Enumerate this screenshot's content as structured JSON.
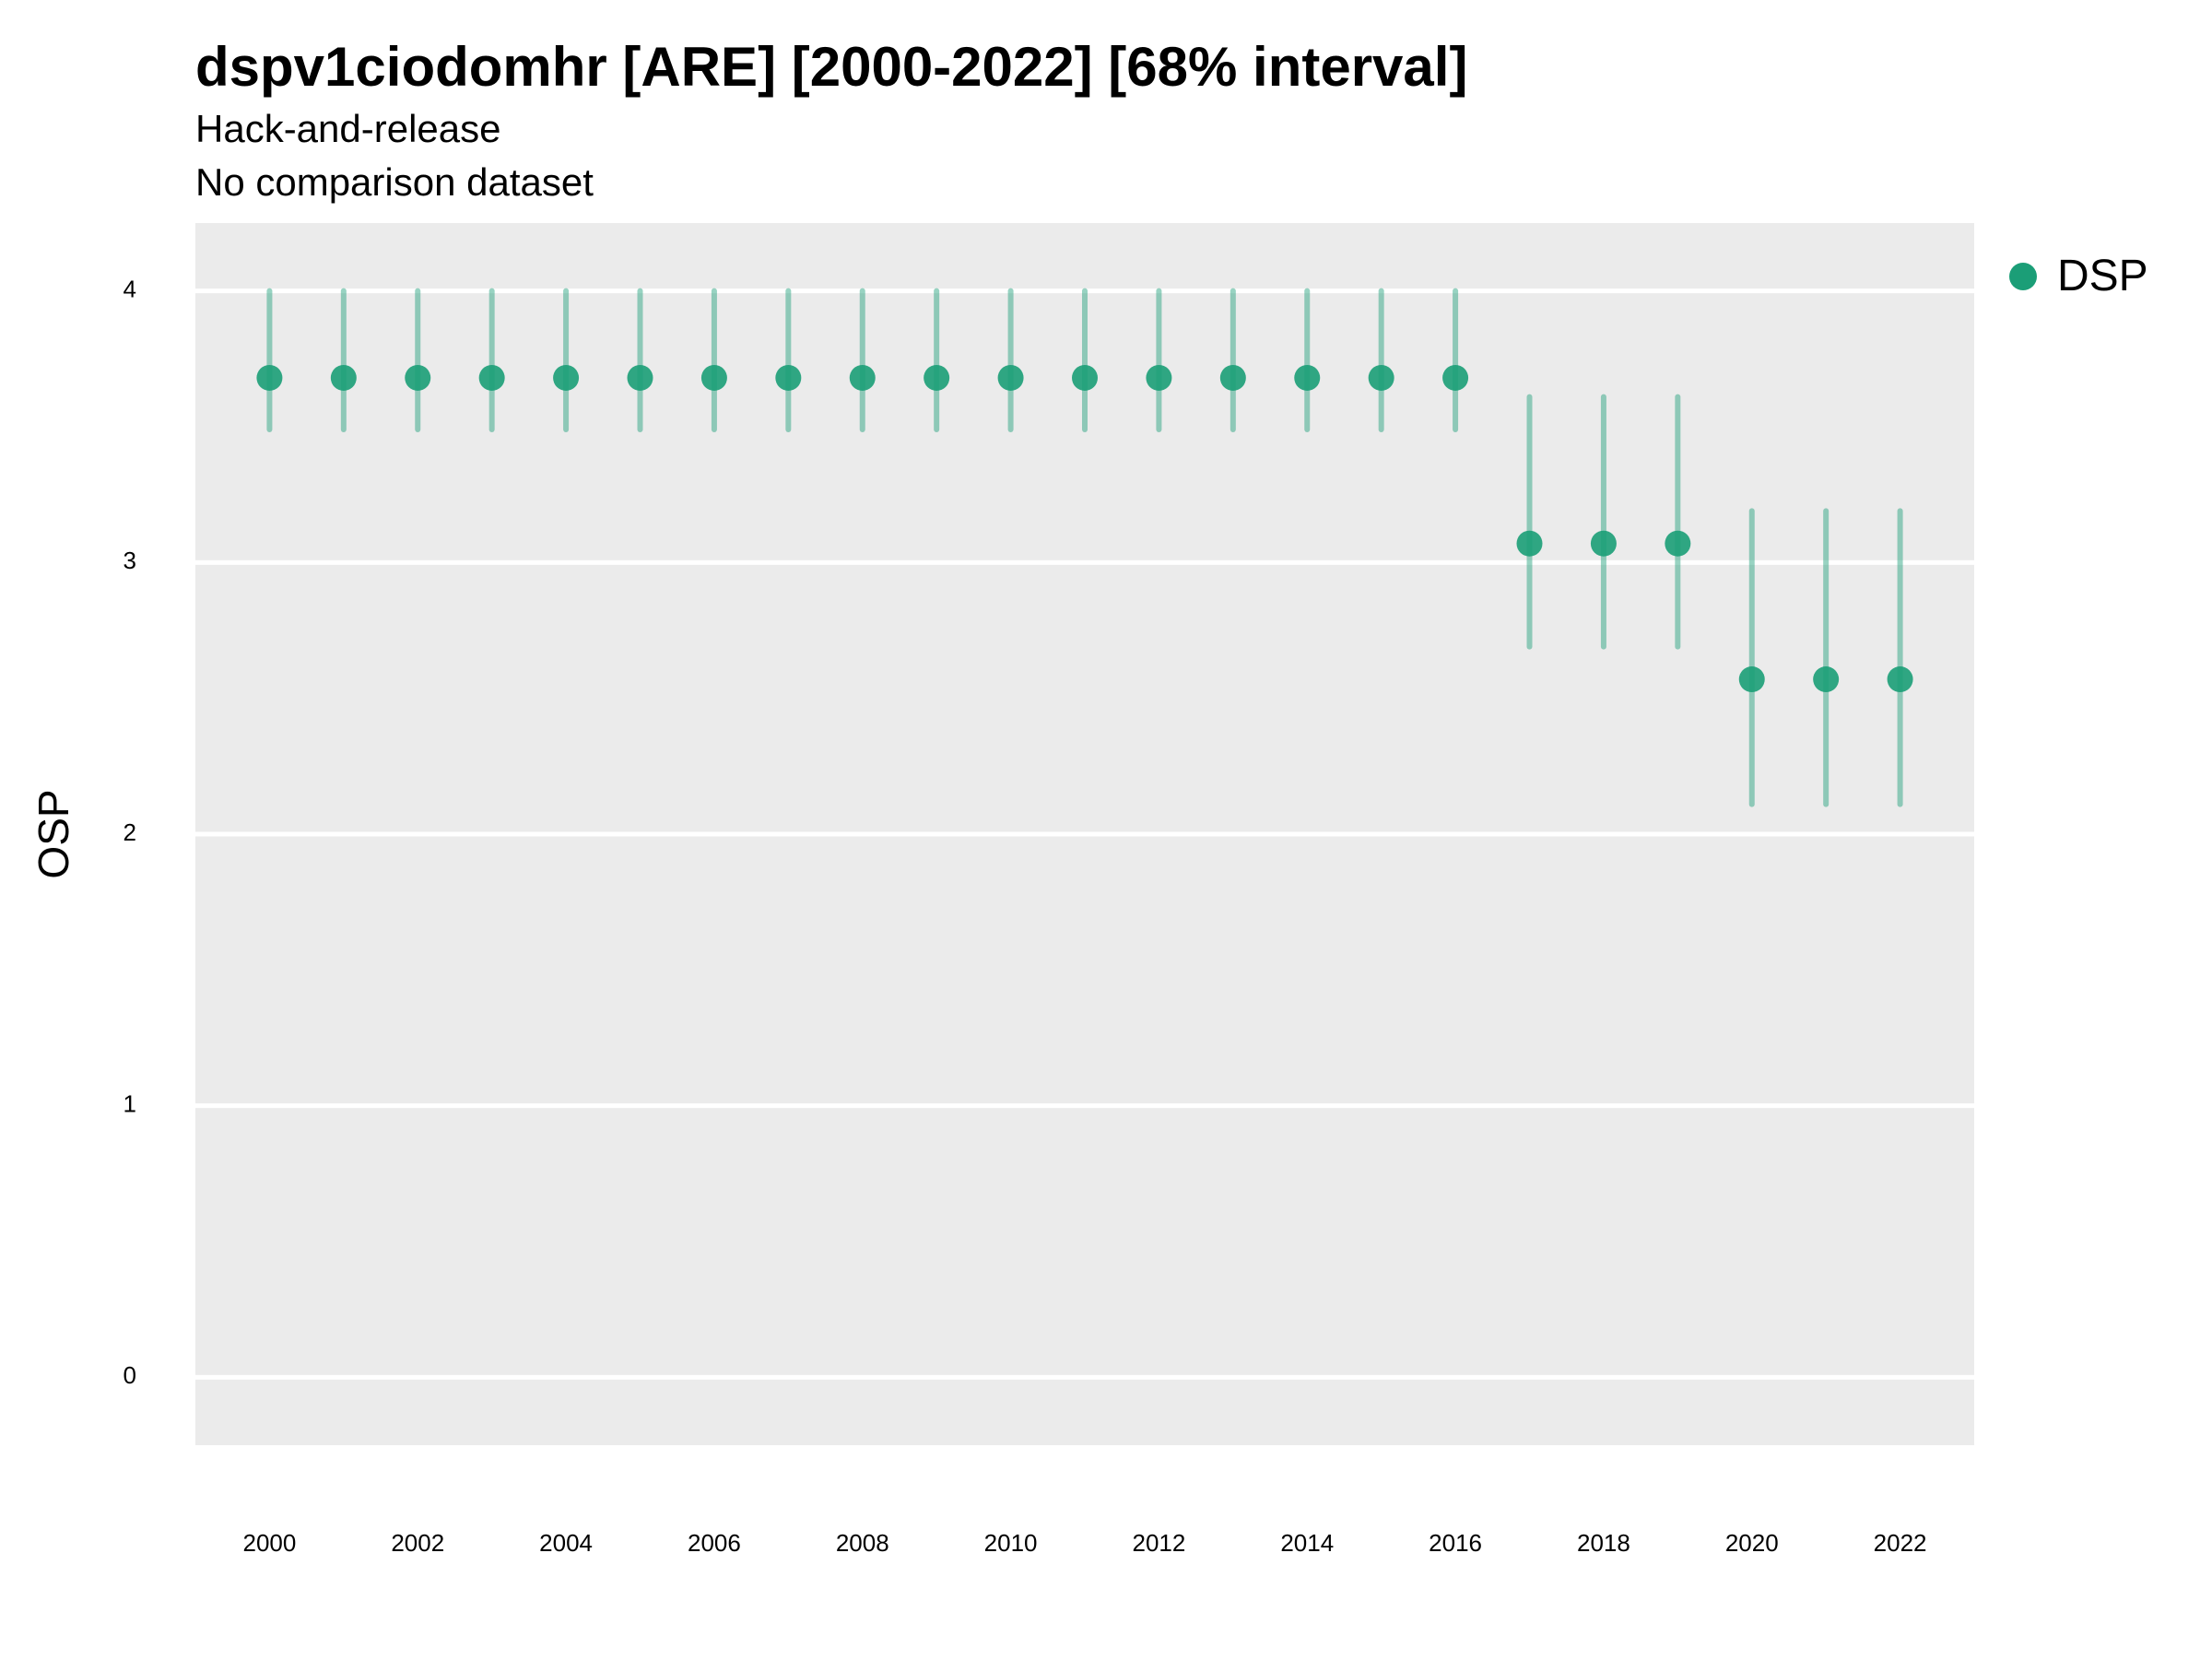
{
  "chart_data": {
    "type": "scatter",
    "title": "dspv1ciodomhr [ARE] [2000-2022] [68% interval]",
    "subtitle_lines": [
      "Hack-and-release",
      "No comparison dataset"
    ],
    "xlabel": "",
    "ylabel": "OSP",
    "xlim": [
      1999,
      2023
    ],
    "ylim": [
      -0.25,
      4.25
    ],
    "x_ticks": [
      2000,
      2002,
      2004,
      2006,
      2008,
      2010,
      2012,
      2014,
      2016,
      2018,
      2020,
      2022
    ],
    "y_ticks": [
      0,
      1,
      2,
      3,
      4
    ],
    "grid": true,
    "legend_position": "right",
    "colors": {
      "series": "#1b9e77",
      "panel": "#ebebeb",
      "grid": "#ffffff"
    },
    "series": [
      {
        "name": "DSP",
        "points": [
          {
            "x": 2000,
            "y": 3.68,
            "low": 3.49,
            "high": 4.0
          },
          {
            "x": 2001,
            "y": 3.68,
            "low": 3.49,
            "high": 4.0
          },
          {
            "x": 2002,
            "y": 3.68,
            "low": 3.49,
            "high": 4.0
          },
          {
            "x": 2003,
            "y": 3.68,
            "low": 3.49,
            "high": 4.0
          },
          {
            "x": 2004,
            "y": 3.68,
            "low": 3.49,
            "high": 4.0
          },
          {
            "x": 2005,
            "y": 3.68,
            "low": 3.49,
            "high": 4.0
          },
          {
            "x": 2006,
            "y": 3.68,
            "low": 3.49,
            "high": 4.0
          },
          {
            "x": 2007,
            "y": 3.68,
            "low": 3.49,
            "high": 4.0
          },
          {
            "x": 2008,
            "y": 3.68,
            "low": 3.49,
            "high": 4.0
          },
          {
            "x": 2009,
            "y": 3.68,
            "low": 3.49,
            "high": 4.0
          },
          {
            "x": 2010,
            "y": 3.68,
            "low": 3.49,
            "high": 4.0
          },
          {
            "x": 2011,
            "y": 3.68,
            "low": 3.49,
            "high": 4.0
          },
          {
            "x": 2012,
            "y": 3.68,
            "low": 3.49,
            "high": 4.0
          },
          {
            "x": 2013,
            "y": 3.68,
            "low": 3.49,
            "high": 4.0
          },
          {
            "x": 2014,
            "y": 3.68,
            "low": 3.49,
            "high": 4.0
          },
          {
            "x": 2015,
            "y": 3.68,
            "low": 3.49,
            "high": 4.0
          },
          {
            "x": 2016,
            "y": 3.68,
            "low": 3.49,
            "high": 4.0
          },
          {
            "x": 2017,
            "y": 3.07,
            "low": 2.69,
            "high": 3.61
          },
          {
            "x": 2018,
            "y": 3.07,
            "low": 2.69,
            "high": 3.61
          },
          {
            "x": 2019,
            "y": 3.07,
            "low": 2.69,
            "high": 3.61
          },
          {
            "x": 2020,
            "y": 2.57,
            "low": 2.11,
            "high": 3.19
          },
          {
            "x": 2021,
            "y": 2.57,
            "low": 2.11,
            "high": 3.19
          },
          {
            "x": 2022,
            "y": 2.57,
            "low": 2.11,
            "high": 3.19
          }
        ]
      }
    ]
  }
}
